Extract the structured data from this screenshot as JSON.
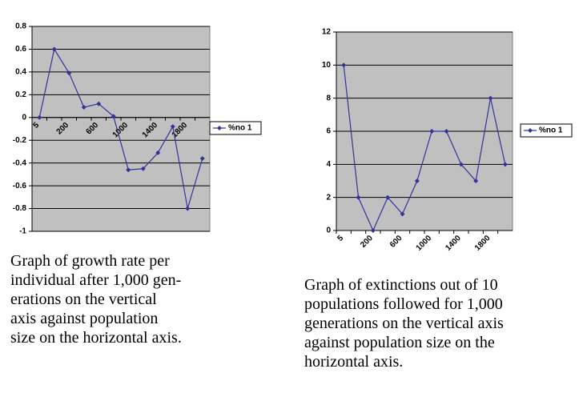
{
  "chart_data": [
    {
      "type": "line",
      "categories": [
        "5",
        null,
        "200",
        null,
        "600",
        null,
        "1000",
        null,
        "1400",
        null,
        "1800",
        null
      ],
      "series": [
        {
          "name": "%no 1",
          "color": "#333399",
          "values": [
            0,
            0.6,
            0.39,
            0.09,
            0.12,
            0.01,
            -0.46,
            -0.45,
            -0.31,
            -0.08,
            -0.8,
            -0.36
          ]
        }
      ],
      "ylim": [
        -1,
        0.8
      ],
      "yticks": [
        -1,
        -0.8,
        -0.6,
        -0.4,
        -0.2,
        0,
        0.2,
        0.4,
        0.6,
        0.8
      ],
      "grid": true,
      "legend": "right",
      "caption": [
        "Graph of growth rate per",
        "individual after 1,000 gen-",
        "erations on the vertical",
        "axis against population",
        "size on the horizontal axis."
      ]
    },
    {
      "type": "line",
      "categories": [
        "5",
        null,
        "200",
        null,
        "600",
        null,
        "1000",
        null,
        "1400",
        null,
        "1800",
        null
      ],
      "series": [
        {
          "name": "%no 1",
          "color": "#333399",
          "values": [
            10,
            2,
            0,
            2,
            1,
            3,
            6,
            6,
            4,
            3,
            8,
            4
          ]
        }
      ],
      "ylim": [
        0,
        12
      ],
      "yticks": [
        0,
        2,
        4,
        6,
        8,
        10,
        12
      ],
      "grid": true,
      "legend": "right",
      "caption": [
        "Graph of extinctions out of 10",
        "populations followed for 1,000",
        "generations on the vertical axis",
        "against population size on the",
        "horizontal axis."
      ]
    }
  ]
}
